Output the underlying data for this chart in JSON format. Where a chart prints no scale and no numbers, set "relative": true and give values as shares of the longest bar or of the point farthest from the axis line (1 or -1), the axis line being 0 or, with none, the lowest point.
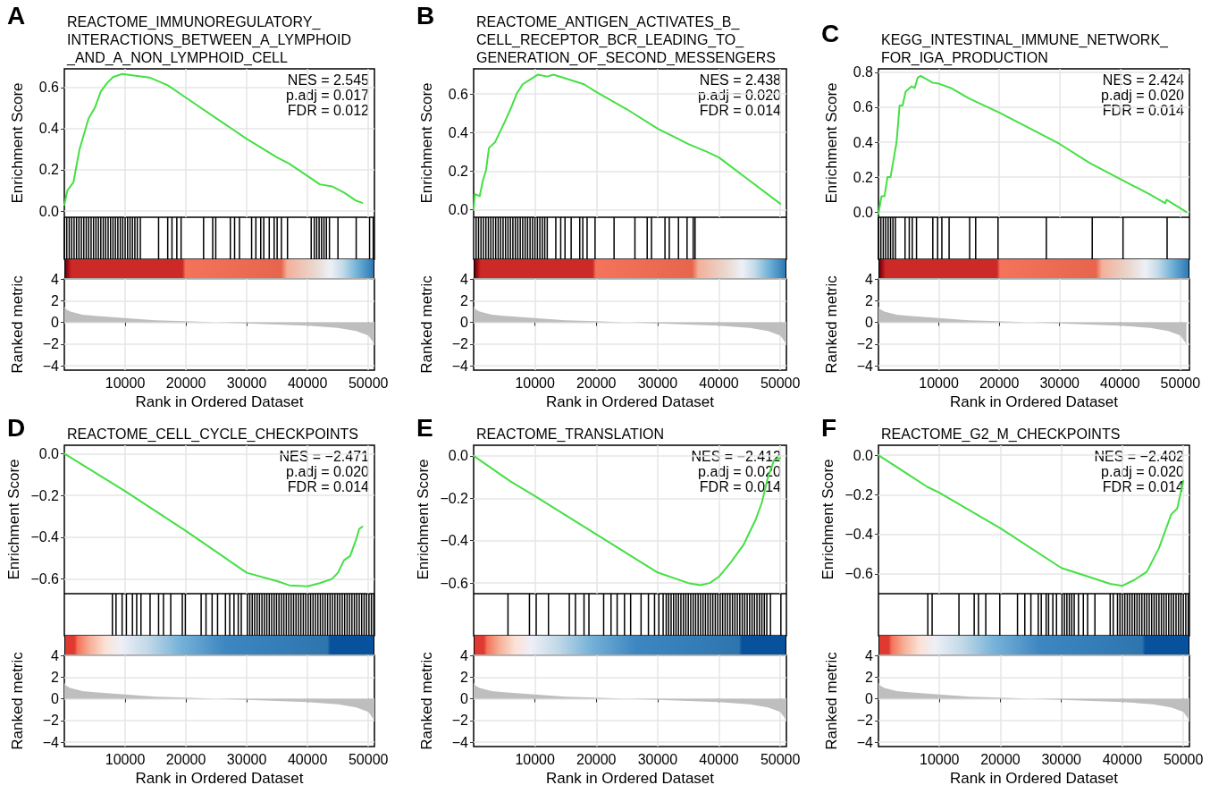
{
  "chart_data": [
    {
      "type": "line",
      "title": "REACTOME_IMMUNOREGULATORY_\nINTERACTIONS_BETWEEN_A_LYMPHOID\n_AND_A_NON_LYMPHOID_CELL",
      "ylabel": "Enrichment Score",
      "annotations": [
        "A",
        "NES = 2.545",
        "p.adj = 0.017",
        "FDR = 0.012"
      ],
      "color": "#44e044",
      "x": [
        0,
        500,
        1500,
        2500,
        4000,
        5000,
        6000,
        7000,
        8000,
        9500,
        12000,
        14000,
        17000,
        20000,
        25000,
        30000,
        35000,
        37000,
        40000,
        42000,
        44000,
        46000,
        48000,
        49000
      ],
      "values": [
        0.03,
        0.1,
        0.14,
        0.3,
        0.45,
        0.5,
        0.58,
        0.62,
        0.65,
        0.665,
        0.655,
        0.648,
        0.61,
        0.55,
        0.45,
        0.35,
        0.26,
        0.23,
        0.17,
        0.13,
        0.12,
        0.09,
        0.05,
        0.04
      ],
      "xlim": [
        0,
        51000
      ],
      "xticks": [
        10000,
        20000,
        30000,
        40000,
        50000
      ],
      "ylim": [
        -0.03,
        0.69
      ],
      "yticks": [
        {
          "value": 0,
          "label": "0.0"
        },
        {
          "value": 0.2,
          "label": "0.2"
        },
        {
          "value": 0.4,
          "label": "0.4"
        },
        {
          "value": 0.6,
          "label": "0.6"
        }
      ],
      "grid": true,
      "tick_labels": "y"
    },
    {
      "type": "bar",
      "relative": true,
      "color": "#000000",
      "xlim": [
        0,
        51000
      ],
      "tick_labels": false,
      "x": [
        0,
        400,
        800,
        1200,
        1600,
        2000,
        2400,
        2800,
        3200,
        3600,
        4000,
        4400,
        4800,
        5200,
        5600,
        6000,
        6400,
        6800,
        7200,
        7600,
        8000,
        8400,
        8800,
        9200,
        9600,
        10000,
        10400,
        10800,
        11200,
        11600,
        12000,
        12500,
        15500,
        17000,
        17700,
        18500,
        19200,
        22900,
        24400,
        24900,
        27300,
        28000,
        28800,
        30800,
        31500,
        32300,
        32800,
        33700,
        34500,
        35000,
        35700,
        36700,
        40600,
        41100,
        41500,
        41900,
        42300,
        42700,
        43100,
        43600,
        45000,
        48000,
        50200,
        50800
      ],
      "values": [
        1,
        1,
        1,
        1,
        1,
        1,
        1,
        1,
        1,
        1,
        1,
        1,
        1,
        1,
        1,
        1,
        1,
        1,
        1,
        1,
        1,
        1,
        1,
        1,
        1,
        1,
        1,
        1,
        1,
        1,
        1,
        1,
        1,
        1,
        1,
        1,
        1,
        1,
        1,
        1,
        1,
        1,
        1,
        1,
        1,
        1,
        1,
        1,
        1,
        1,
        1,
        1,
        1,
        1,
        1,
        1,
        1,
        1,
        1,
        1,
        1,
        1,
        1,
        1
      ]
    },
    {
      "type": "area",
      "xlabel": "Rank in Ordered Dataset",
      "ylabel": "Ranked metric",
      "color": "#bebebe",
      "x": [
        0,
        300,
        1000,
        3000,
        5000,
        10000,
        15000,
        20000,
        25000,
        30000,
        35000,
        40000,
        45000,
        48000,
        50000,
        51000
      ],
      "values": [
        1.5,
        1.2,
        1.0,
        0.7,
        0.6,
        0.4,
        0.2,
        0.1,
        0,
        -0.1,
        -0.2,
        -0.3,
        -0.5,
        -0.8,
        -1.2,
        -2.0
      ],
      "xlim": [
        0,
        51000
      ],
      "xticks": [
        10000,
        20000,
        30000,
        40000,
        50000
      ],
      "ylim": [
        -4.4,
        4
      ],
      "yticks": [
        {
          "value": -4,
          "label": "−4"
        },
        {
          "value": -2,
          "label": "−2"
        },
        0,
        2,
        4
      ],
      "grid": true
    },
    {
      "type": "line",
      "title": "REACTOME_ANTIGEN_ACTIVATES_B_\nCELL_RECEPTOR_BCR_LEADING_TO_\nGENERATION_OF_SECOND_MESSENGERS",
      "ylabel": "Enrichment Score",
      "annotations": [
        "B",
        "NES = 2.438",
        "p.adj = 0.020",
        "FDR = 0.014"
      ],
      "color": "#44e044",
      "x": [
        0,
        200,
        1000,
        1500,
        2000,
        2500,
        3500,
        5000,
        6000,
        7000,
        8000,
        9000,
        10500,
        12000,
        13000,
        15000,
        18000,
        20000,
        25000,
        30000,
        35000,
        38000,
        40000,
        45000,
        50000
      ],
      "values": [
        0,
        0.08,
        0.07,
        0.15,
        0.2,
        0.32,
        0.35,
        0.45,
        0.52,
        0.6,
        0.65,
        0.67,
        0.7,
        0.69,
        0.7,
        0.68,
        0.65,
        0.61,
        0.52,
        0.42,
        0.34,
        0.3,
        0.27,
        0.15,
        0.03
      ],
      "xlim": [
        0,
        51000
      ],
      "xticks": [
        10000,
        20000,
        30000,
        40000,
        50000
      ],
      "ylim": [
        -0.04,
        0.73
      ],
      "yticks": [
        {
          "value": 0,
          "label": "0.0"
        },
        {
          "value": 0.2,
          "label": "0.2"
        },
        {
          "value": 0.4,
          "label": "0.4"
        },
        {
          "value": 0.6,
          "label": "0.6"
        }
      ],
      "grid": true,
      "tick_labels": "y"
    },
    {
      "type": "bar",
      "relative": true,
      "color": "#000000",
      "xlim": [
        0,
        51000
      ],
      "tick_labels": false,
      "x": [
        400,
        800,
        1200,
        1600,
        2000,
        2400,
        2800,
        3200,
        3600,
        4000,
        4400,
        4800,
        5200,
        5600,
        6000,
        6400,
        6800,
        7200,
        7600,
        8000,
        8400,
        8800,
        9200,
        9600,
        10000,
        10400,
        10800,
        11200,
        11600,
        12000,
        13400,
        14200,
        14900,
        15900,
        17300,
        17800,
        18500,
        19800,
        22900,
        26300,
        28300,
        29000,
        31200,
        31900,
        33400,
        34800,
        35800,
        36100
      ],
      "values": [
        1,
        1,
        1,
        1,
        1,
        1,
        1,
        1,
        1,
        1,
        1,
        1,
        1,
        1,
        1,
        1,
        1,
        1,
        1,
        1,
        1,
        1,
        1,
        1,
        1,
        1,
        1,
        1,
        1,
        1,
        1,
        1,
        1,
        1,
        1,
        1,
        1,
        1,
        1,
        1,
        1,
        1,
        1,
        1,
        1,
        1,
        1,
        1
      ]
    },
    {
      "type": "area",
      "xlabel": "Rank in Ordered Dataset",
      "ylabel": "Ranked metric",
      "color": "#bebebe",
      "x": [
        0,
        300,
        1000,
        3000,
        5000,
        10000,
        15000,
        20000,
        25000,
        30000,
        35000,
        40000,
        45000,
        48000,
        50000,
        51000
      ],
      "values": [
        1.5,
        1.2,
        1.0,
        0.7,
        0.6,
        0.4,
        0.2,
        0.1,
        0,
        -0.1,
        -0.2,
        -0.3,
        -0.5,
        -0.8,
        -1.2,
        -2.0
      ],
      "xlim": [
        0,
        51000
      ],
      "xticks": [
        10000,
        20000,
        30000,
        40000,
        50000
      ],
      "ylim": [
        -4.4,
        4
      ],
      "yticks": [
        {
          "value": -4,
          "label": "−4"
        },
        {
          "value": -2,
          "label": "−2"
        },
        0,
        2,
        4
      ],
      "grid": true
    },
    {
      "type": "line",
      "title": "KEGG_INTESTINAL_IMMUNE_NETWORK_\nFOR_IGA_PRODUCTION",
      "ylabel": "Enrichment Score",
      "annotations": [
        "C",
        "NES = 2.424",
        "p.adj = 0.020",
        "FDR = 0.014"
      ],
      "color": "#44e044",
      "x": [
        0,
        500,
        1000,
        1500,
        2000,
        2500,
        3000,
        3500,
        4000,
        4500,
        5500,
        6000,
        6500,
        7000,
        9000,
        10000,
        12000,
        15000,
        20000,
        25000,
        30000,
        35000,
        40000,
        45000,
        47500,
        47700,
        51000
      ],
      "values": [
        -0.01,
        0.09,
        0.09,
        0.2,
        0.2,
        0.3,
        0.4,
        0.61,
        0.61,
        0.69,
        0.72,
        0.71,
        0.77,
        0.78,
        0.74,
        0.735,
        0.71,
        0.65,
        0.57,
        0.48,
        0.39,
        0.28,
        0.19,
        0.1,
        0.05,
        0.07,
        0.0
      ],
      "xlim": [
        0,
        51500
      ],
      "xticks": [
        10000,
        20000,
        30000,
        40000,
        50000
      ],
      "ylim": [
        -0.03,
        0.82
      ],
      "yticks": [
        {
          "value": 0,
          "label": "0.0"
        },
        {
          "value": 0.2,
          "label": "0.2"
        },
        {
          "value": 0.4,
          "label": "0.4"
        },
        {
          "value": 0.6,
          "label": "0.6"
        },
        {
          "value": 0.8,
          "label": "0.8"
        }
      ],
      "grid": true,
      "tick_labels": "y"
    },
    {
      "type": "bar",
      "relative": true,
      "color": "#000000",
      "xlim": [
        0,
        51500
      ],
      "tick_labels": false,
      "x": [
        0,
        400,
        800,
        1200,
        1600,
        2000,
        2400,
        2800,
        4400,
        5100,
        5600,
        6300,
        9000,
        9800,
        10500,
        11700,
        15100,
        16100,
        19800,
        27800,
        35400,
        40500,
        47800
      ],
      "values": [
        1,
        1,
        1,
        1,
        1,
        1,
        1,
        1,
        1,
        1,
        1,
        1,
        1,
        1,
        1,
        1,
        1,
        1,
        1,
        1,
        1,
        1,
        1
      ]
    },
    {
      "type": "area",
      "xlabel": "Rank in Ordered Dataset",
      "ylabel": "Ranked metric",
      "color": "#bebebe",
      "x": [
        0,
        300,
        1000,
        3000,
        5000,
        10000,
        15000,
        20000,
        25000,
        30000,
        35000,
        40000,
        45000,
        48000,
        50000,
        51000
      ],
      "values": [
        1.5,
        1.2,
        1.0,
        0.7,
        0.6,
        0.4,
        0.2,
        0.1,
        0,
        -0.1,
        -0.2,
        -0.3,
        -0.5,
        -0.8,
        -1.2,
        -2.0
      ],
      "xlim": [
        0,
        51500
      ],
      "xticks": [
        10000,
        20000,
        30000,
        40000,
        50000
      ],
      "ylim": [
        -4.4,
        4
      ],
      "yticks": [
        {
          "value": -4,
          "label": "−4"
        },
        {
          "value": -2,
          "label": "−2"
        },
        0,
        2,
        4
      ],
      "grid": true
    },
    {
      "type": "line",
      "title": "REACTOME_CELL_CYCLE_CHECKPOINTS",
      "ylabel": "Enrichment Score",
      "annotations": [
        "D",
        "NES = −2.471",
        "p.adj = 0.020",
        "FDR = 0.014"
      ],
      "color": "#44e044",
      "x": [
        0,
        10000,
        20000,
        30000,
        35000,
        37000,
        40000,
        42000,
        44000,
        45000,
        46000,
        47000,
        48000,
        48500,
        49000
      ],
      "values": [
        0,
        -0.18,
        -0.37,
        -0.57,
        -0.61,
        -0.63,
        -0.635,
        -0.62,
        -0.6,
        -0.57,
        -0.51,
        -0.49,
        -0.41,
        -0.36,
        -0.35
      ],
      "xlim": [
        0,
        51000
      ],
      "xticks": [
        10000,
        20000,
        30000,
        40000,
        50000
      ],
      "ylim": [
        -0.67,
        0.04
      ],
      "yticks": [
        {
          "value": 0,
          "label": "0.0"
        },
        {
          "value": -0.2,
          "label": "−0.2"
        },
        {
          "value": -0.4,
          "label": "−0.4"
        },
        {
          "value": -0.6,
          "label": "−0.6"
        }
      ],
      "grid": true,
      "tick_labels": "y"
    },
    {
      "type": "bar",
      "relative": true,
      "color": "#000000",
      "xlim": [
        0,
        51000
      ],
      "tick_labels": false,
      "x": [
        7900,
        8500,
        9500,
        10200,
        11200,
        11900,
        12600,
        14100,
        15500,
        16300,
        17500,
        19400,
        19900,
        22500,
        23300,
        24300,
        25200,
        26500,
        27200,
        27900,
        28600,
        29100,
        30100,
        30500,
        30900,
        31300,
        31700,
        32100,
        32500,
        32900,
        33300,
        33700,
        34100,
        34500,
        34900,
        35300,
        35700,
        36100,
        36500,
        36900,
        37300,
        37700,
        38100,
        38500,
        38900,
        39300,
        39700,
        40100,
        40500,
        40900,
        41300,
        41700,
        42100,
        42500,
        42900,
        43300,
        43700,
        44100,
        44500,
        44900,
        45300,
        45700,
        46100,
        46500,
        46900,
        47300,
        47700,
        48100,
        48500,
        48900,
        49300,
        49700,
        50100,
        50500,
        50900
      ],
      "values": [
        1,
        1,
        1,
        1,
        1,
        1,
        1,
        1,
        1,
        1,
        1,
        1,
        1,
        1,
        1,
        1,
        1,
        1,
        1,
        1,
        1,
        1,
        1,
        1,
        1,
        1,
        1,
        1,
        1,
        1,
        1,
        1,
        1,
        1,
        1,
        1,
        1,
        1,
        1,
        1,
        1,
        1,
        1,
        1,
        1,
        1,
        1,
        1,
        1,
        1,
        1,
        1,
        1,
        1,
        1,
        1,
        1,
        1,
        1,
        1,
        1,
        1,
        1,
        1,
        1,
        1,
        1,
        1,
        1,
        1,
        1,
        1,
        1,
        1,
        1
      ]
    },
    {
      "type": "area",
      "xlabel": "Rank in Ordered Dataset",
      "ylabel": "Ranked metric",
      "color": "#bebebe",
      "x": [
        0,
        300,
        1000,
        3000,
        5000,
        10000,
        15000,
        20000,
        25000,
        30000,
        35000,
        40000,
        45000,
        48000,
        50000,
        51000
      ],
      "values": [
        1.5,
        1.2,
        1.0,
        0.7,
        0.6,
        0.4,
        0.2,
        0.1,
        0,
        -0.1,
        -0.2,
        -0.3,
        -0.5,
        -0.8,
        -1.2,
        -2.0
      ],
      "xlim": [
        0,
        51000
      ],
      "xticks": [
        10000,
        20000,
        30000,
        40000,
        50000
      ],
      "ylim": [
        -4.4,
        4
      ],
      "yticks": [
        {
          "value": -4,
          "label": "−4"
        },
        {
          "value": -2,
          "label": "−2"
        },
        0,
        2,
        4
      ],
      "grid": true
    },
    {
      "type": "line",
      "title": "REACTOME_TRANSLATION",
      "ylabel": "Enrichment Score",
      "annotations": [
        "E",
        "NES = −2.412",
        "p.adj = 0.020",
        "FDR = 0.014"
      ],
      "color": "#44e044",
      "x": [
        0,
        6000,
        10000,
        20000,
        30000,
        35000,
        37000,
        38500,
        40000,
        42000,
        44000,
        46000,
        47000,
        48000,
        49000,
        50000
      ],
      "values": [
        0,
        -0.12,
        -0.19,
        -0.37,
        -0.55,
        -0.6,
        -0.61,
        -0.6,
        -0.57,
        -0.5,
        -0.42,
        -0.3,
        -0.22,
        -0.1,
        -0.02,
        -0.01
      ],
      "xlim": [
        0,
        51000
      ],
      "xticks": [
        10000,
        20000,
        30000,
        40000,
        50000
      ],
      "ylim": [
        -0.65,
        0.05
      ],
      "yticks": [
        {
          "value": 0,
          "label": "0.0"
        },
        {
          "value": -0.2,
          "label": "−0.2"
        },
        {
          "value": -0.4,
          "label": "−0.4"
        },
        {
          "value": -0.6,
          "label": "−0.6"
        }
      ],
      "grid": true,
      "tick_labels": "y"
    },
    {
      "type": "bar",
      "relative": true,
      "color": "#000000",
      "xlim": [
        0,
        51000
      ],
      "tick_labels": false,
      "x": [
        5600,
        9100,
        10200,
        12200,
        15600,
        16600,
        18000,
        18800,
        21200,
        22400,
        23400,
        24600,
        25600,
        27300,
        28500,
        29500,
        30200,
        30900,
        31400,
        31800,
        32200,
        32600,
        33000,
        33400,
        33800,
        34200,
        34600,
        35000,
        35400,
        35800,
        36200,
        36600,
        37000,
        37400,
        37800,
        38200,
        38600,
        39000,
        39400,
        39800,
        40200,
        40600,
        41000,
        41400,
        41800,
        42200,
        42600,
        43000,
        43400,
        43800,
        44200,
        44600,
        45000,
        45400,
        45800,
        46200,
        46600,
        47000,
        47400,
        47800,
        48400,
        50100
      ],
      "values": [
        1,
        1,
        1,
        1,
        1,
        1,
        1,
        1,
        1,
        1,
        1,
        1,
        1,
        1,
        1,
        1,
        1,
        1,
        1,
        1,
        1,
        1,
        1,
        1,
        1,
        1,
        1,
        1,
        1,
        1,
        1,
        1,
        1,
        1,
        1,
        1,
        1,
        1,
        1,
        1,
        1,
        1,
        1,
        1,
        1,
        1,
        1,
        1,
        1,
        1,
        1,
        1,
        1,
        1,
        1,
        1,
        1,
        1,
        1,
        1,
        1,
        1
      ]
    },
    {
      "type": "area",
      "xlabel": "Rank in Ordered Dataset",
      "ylabel": "Ranked metric",
      "color": "#bebebe",
      "x": [
        0,
        300,
        1000,
        3000,
        5000,
        10000,
        15000,
        20000,
        25000,
        30000,
        35000,
        40000,
        45000,
        48000,
        50000,
        51000
      ],
      "values": [
        1.5,
        1.2,
        1.0,
        0.7,
        0.6,
        0.4,
        0.2,
        0.1,
        0,
        -0.1,
        -0.2,
        -0.3,
        -0.5,
        -0.8,
        -1.2,
        -2.0
      ],
      "xlim": [
        0,
        51000
      ],
      "xticks": [
        10000,
        20000,
        30000,
        40000,
        50000
      ],
      "ylim": [
        -4.4,
        4
      ],
      "yticks": [
        {
          "value": -4,
          "label": "−4"
        },
        {
          "value": -2,
          "label": "−2"
        },
        0,
        2,
        4
      ],
      "grid": true
    },
    {
      "type": "line",
      "title": "REACTOME_G2_M_CHECKPOINTS",
      "ylabel": "Enrichment Score",
      "annotations": [
        "F",
        "NES = −2.402",
        "p.adj = 0.020",
        "FDR = 0.014"
      ],
      "color": "#44e044",
      "x": [
        0,
        8000,
        10000,
        20000,
        30000,
        35000,
        38000,
        40000,
        42000,
        44000,
        46000,
        48000,
        49000,
        49500,
        50000
      ],
      "values": [
        0,
        -0.16,
        -0.19,
        -0.37,
        -0.57,
        -0.62,
        -0.65,
        -0.66,
        -0.63,
        -0.59,
        -0.47,
        -0.3,
        -0.27,
        -0.2,
        -0.13
      ],
      "xlim": [
        0,
        51000
      ],
      "xticks": [
        10000,
        20000,
        30000,
        40000,
        50000
      ],
      "ylim": [
        -0.7,
        0.05
      ],
      "yticks": [
        {
          "value": 0,
          "label": "0.0"
        },
        {
          "value": -0.2,
          "label": "−0.2"
        },
        {
          "value": -0.4,
          "label": "−0.4"
        },
        {
          "value": -0.6,
          "label": "−0.6"
        }
      ],
      "grid": true,
      "tick_labels": "y"
    },
    {
      "type": "bar",
      "relative": true,
      "color": "#000000",
      "xlim": [
        0,
        51000
      ],
      "tick_labels": false,
      "x": [
        8100,
        8800,
        13200,
        15700,
        16400,
        17600,
        19900,
        22800,
        24000,
        25000,
        26200,
        26700,
        27500,
        27900,
        28600,
        29200,
        30100,
        30500,
        30900,
        31300,
        31700,
        32100,
        32800,
        33600,
        34300,
        35500,
        38000,
        38500,
        39200,
        39600,
        40000,
        40400,
        40800,
        41200,
        41600,
        42000,
        42400,
        42800,
        43200,
        43600,
        44000,
        44400,
        44800,
        45200,
        45600,
        46000,
        46400,
        46800,
        47200,
        47600,
        48000,
        48400,
        48800,
        49200,
        49600,
        50000,
        50400,
        50800
      ],
      "values": [
        1,
        1,
        1,
        1,
        1,
        1,
        1,
        1,
        1,
        1,
        1,
        1,
        1,
        1,
        1,
        1,
        1,
        1,
        1,
        1,
        1,
        1,
        1,
        1,
        1,
        1,
        1,
        1,
        1,
        1,
        1,
        1,
        1,
        1,
        1,
        1,
        1,
        1,
        1,
        1,
        1,
        1,
        1,
        1,
        1,
        1,
        1,
        1,
        1,
        1,
        1,
        1,
        1,
        1,
        1,
        1,
        1,
        1
      ]
    },
    {
      "type": "area",
      "xlabel": "Rank in Ordered Dataset",
      "ylabel": "Ranked metric",
      "color": "#bebebe",
      "x": [
        0,
        300,
        1000,
        3000,
        5000,
        10000,
        15000,
        20000,
        25000,
        30000,
        35000,
        40000,
        45000,
        48000,
        50000,
        51000
      ],
      "values": [
        1.5,
        1.2,
        1.0,
        0.7,
        0.6,
        0.4,
        0.2,
        0.1,
        0,
        -0.1,
        -0.2,
        -0.3,
        -0.5,
        -0.8,
        -1.2,
        -2.0
      ],
      "xlim": [
        0,
        51000
      ],
      "xticks": [
        10000,
        20000,
        30000,
        40000,
        50000
      ],
      "ylim": [
        -4.4,
        4
      ],
      "yticks": [
        {
          "value": -4,
          "label": "−4"
        },
        {
          "value": -2,
          "label": "−2"
        },
        0,
        2,
        4
      ],
      "grid": true
    }
  ]
}
